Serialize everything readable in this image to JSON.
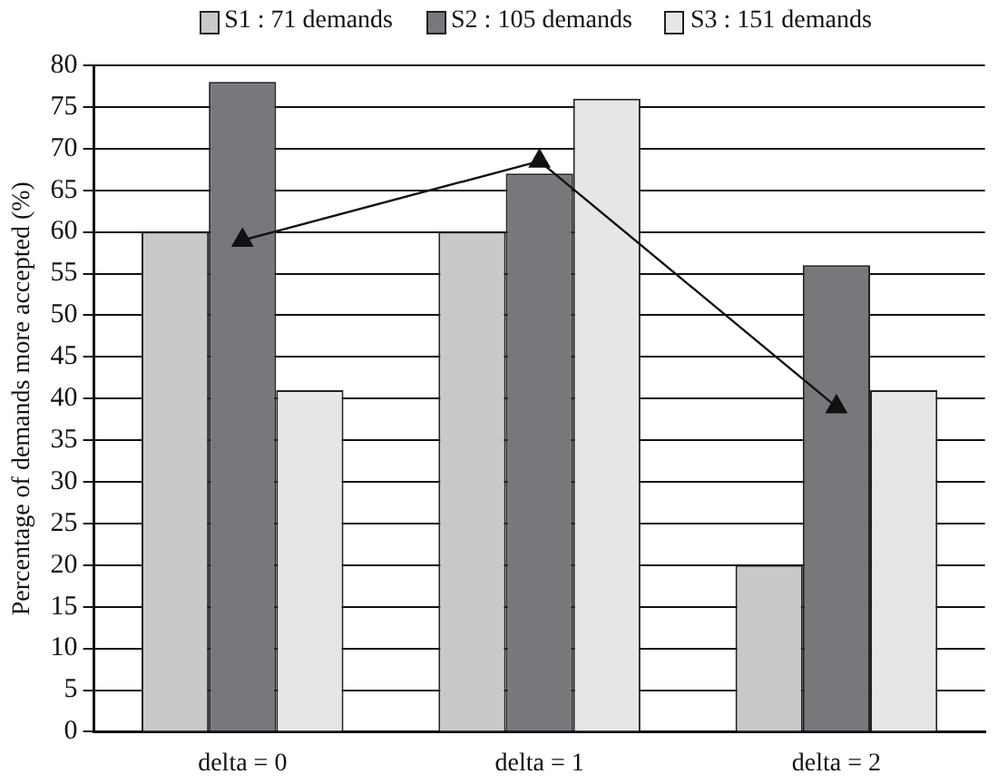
{
  "chart_data": {
    "type": "bar",
    "ylabel": "Percentage of demands more accepted (%)",
    "categories": [
      "delta = 0",
      "delta = 1",
      "delta = 2"
    ],
    "series": [
      {
        "name": "S1 : 71 demands",
        "color": "#c8c9cb",
        "values": [
          60,
          60,
          20
        ]
      },
      {
        "name": "S2 : 105 demands",
        "color": "#77787c",
        "values": [
          78,
          67,
          56
        ]
      },
      {
        "name": "S3 : 151 demands",
        "color": "#e6e6e6",
        "values": [
          41,
          76,
          41
        ]
      },
      {
        "type": "line",
        "color": "#111111",
        "values": [
          59,
          68.5,
          39
        ],
        "marker": "triangle"
      }
    ],
    "ylim": [
      0,
      80
    ],
    "yticks": [
      0,
      5,
      10,
      15,
      20,
      25,
      30,
      35,
      40,
      45,
      50,
      55,
      60,
      65,
      70,
      75,
      80
    ],
    "grid": "y",
    "legend": "top"
  }
}
